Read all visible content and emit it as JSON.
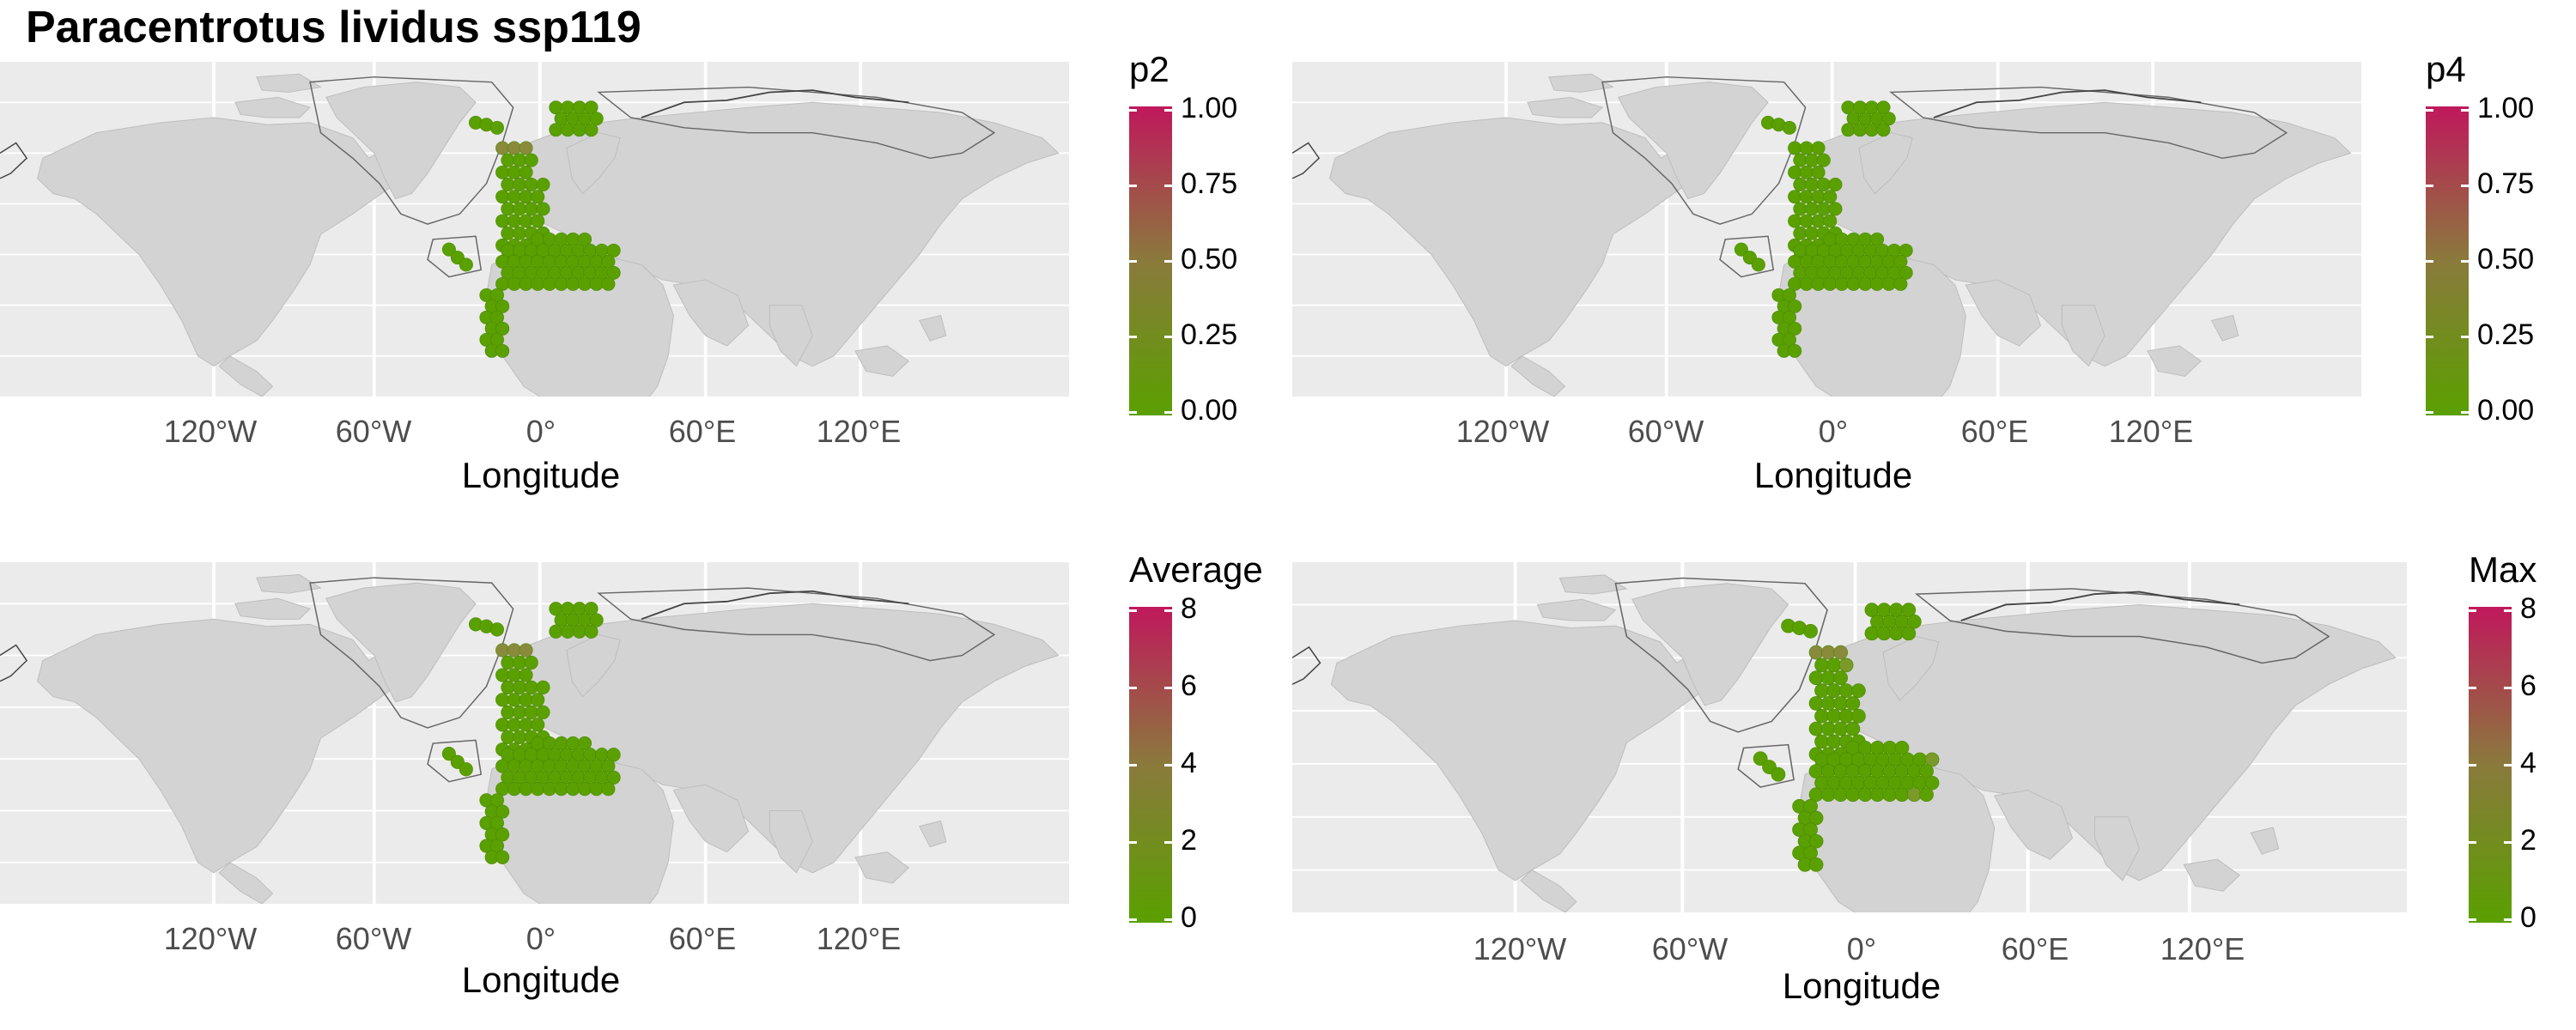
{
  "title": "Paracentrotus lividus ssp119",
  "colors": {
    "panel_bg": "#ebebeb",
    "grid": "#ffffff",
    "land": "#d3d3d3",
    "region_outline": "#666666",
    "low": "#5aa000",
    "mid": "#8a7a3c",
    "high": "#c0185c"
  },
  "panels": [
    {
      "id": "p2",
      "legend": {
        "title": "p2",
        "labels": [
          "1.00",
          "0.75",
          "0.50",
          "0.25",
          "0.00"
        ],
        "range": [
          0,
          1
        ]
      },
      "x_ticks": [
        "120°W",
        "60°W",
        "0°",
        "60°E",
        "120°E"
      ],
      "xlabel": "Longitude"
    },
    {
      "id": "p4",
      "legend": {
        "title": "p4",
        "labels": [
          "1.00",
          "0.75",
          "0.50",
          "0.25",
          "0.00"
        ],
        "range": [
          0,
          1
        ]
      },
      "x_ticks": [
        "120°W",
        "60°W",
        "0°",
        "60°E",
        "120°E"
      ],
      "xlabel": "Longitude"
    },
    {
      "id": "average",
      "legend": {
        "title": "Average",
        "labels": [
          "8",
          "6",
          "4",
          "2",
          "0"
        ],
        "range": [
          0,
          8
        ]
      },
      "x_ticks": [
        "120°W",
        "60°W",
        "0°",
        "60°E",
        "120°E"
      ],
      "xlabel": "Longitude"
    },
    {
      "id": "max",
      "legend": {
        "title": "Max",
        "labels": [
          "8",
          "6",
          "4",
          "2",
          "0"
        ],
        "range": [
          0,
          8
        ]
      },
      "x_ticks": [
        "120°W",
        "60°W",
        "0°",
        "60°E",
        "120°E"
      ],
      "xlabel": "Longitude"
    }
  ]
}
